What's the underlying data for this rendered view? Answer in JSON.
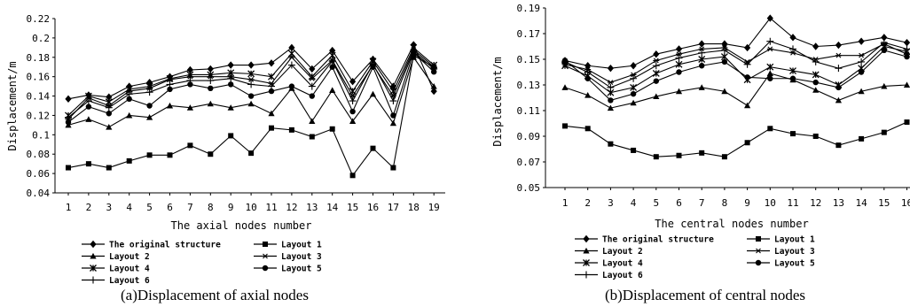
{
  "panels": [
    {
      "caption": "(a)Displacement of axial nodes"
    },
    {
      "caption": "(b)Displacement of central nodes"
    }
  ],
  "chart_data": [
    {
      "type": "line",
      "xlabel": "The axial nodes number",
      "ylabel": "Displacement/m",
      "ylim": [
        0.04,
        0.22
      ],
      "yticks": [
        "0.04",
        "0.06",
        "0.08",
        "0.1",
        "0.12",
        "0.14",
        "0.16",
        "0.18",
        "0.2",
        "0.22"
      ],
      "yticks_values": [
        0.04,
        0.06,
        0.08,
        0.1,
        0.12,
        0.14,
        0.16,
        0.18,
        0.2,
        0.22
      ],
      "x": [
        1,
        2,
        3,
        4,
        5,
        6,
        7,
        8,
        9,
        10,
        11,
        12,
        13,
        14,
        15,
        16,
        17,
        18,
        19
      ],
      "legend_position": "bottom",
      "series": [
        {
          "name": "The original structure",
          "marker": "diamond",
          "values": [
            0.137,
            0.141,
            0.139,
            0.15,
            0.154,
            0.16,
            0.167,
            0.168,
            0.172,
            0.172,
            0.174,
            0.19,
            0.168,
            0.187,
            0.155,
            0.178,
            0.15,
            0.193,
            0.145
          ]
        },
        {
          "name": "Layout 1",
          "marker": "square",
          "values": [
            0.066,
            0.07,
            0.066,
            0.073,
            0.079,
            0.079,
            0.089,
            0.08,
            0.099,
            0.081,
            0.107,
            0.105,
            0.098,
            0.106,
            0.058,
            0.086,
            0.066,
            0.182,
            0.17
          ]
        },
        {
          "name": "Layout 2",
          "marker": "triangle",
          "values": [
            0.11,
            0.116,
            0.108,
            0.12,
            0.118,
            0.13,
            0.128,
            0.132,
            0.128,
            0.132,
            0.122,
            0.148,
            0.114,
            0.146,
            0.114,
            0.142,
            0.112,
            0.18,
            0.15
          ]
        },
        {
          "name": "Layout 3",
          "marker": "star",
          "values": [
            0.116,
            0.138,
            0.13,
            0.145,
            0.148,
            0.157,
            0.16,
            0.16,
            0.16,
            0.157,
            0.153,
            0.18,
            0.158,
            0.177,
            0.14,
            0.172,
            0.14,
            0.188,
            0.17
          ]
        },
        {
          "name": "Layout 4",
          "marker": "x",
          "values": [
            0.12,
            0.14,
            0.134,
            0.147,
            0.15,
            0.158,
            0.162,
            0.162,
            0.164,
            0.163,
            0.16,
            0.184,
            0.16,
            0.182,
            0.145,
            0.176,
            0.145,
            0.19,
            0.172
          ]
        },
        {
          "name": "Layout 5",
          "marker": "circle",
          "values": [
            0.113,
            0.129,
            0.122,
            0.137,
            0.13,
            0.147,
            0.152,
            0.148,
            0.152,
            0.14,
            0.145,
            0.15,
            0.14,
            0.17,
            0.124,
            0.17,
            0.12,
            0.185,
            0.165
          ]
        },
        {
          "name": "Layout 6",
          "marker": "plus",
          "values": [
            0.118,
            0.135,
            0.128,
            0.142,
            0.144,
            0.152,
            0.156,
            0.156,
            0.158,
            0.152,
            0.15,
            0.172,
            0.15,
            0.176,
            0.135,
            0.173,
            0.135,
            0.186,
            0.168
          ]
        }
      ]
    },
    {
      "type": "line",
      "xlabel": "The central nodes number",
      "ylabel": "Displacement/m",
      "ylim": [
        0.05,
        0.19
      ],
      "yticks": [
        "0.05",
        "0.07",
        "0.09",
        "0.11",
        "0.13",
        "0.15",
        "0.17",
        "0.19"
      ],
      "yticks_values": [
        0.05,
        0.07,
        0.09,
        0.11,
        0.13,
        0.15,
        0.17,
        0.19
      ],
      "x": [
        1,
        2,
        3,
        4,
        5,
        6,
        7,
        8,
        9,
        10,
        11,
        12,
        13,
        14,
        15,
        16
      ],
      "xticks": [
        "1",
        "2",
        "3",
        "4",
        "5",
        "6",
        "7",
        "8",
        "9",
        "10",
        "11",
        "12",
        "13",
        "14",
        "15",
        "16"
      ],
      "legend_position": "bottom",
      "series": [
        {
          "name": "The original structure",
          "marker": "diamond",
          "values": [
            0.149,
            0.145,
            0.143,
            0.145,
            0.154,
            0.158,
            0.162,
            0.162,
            0.159,
            0.182,
            0.167,
            0.16,
            0.161,
            0.164,
            0.167,
            0.163
          ]
        },
        {
          "name": "Layout 1",
          "marker": "square",
          "values": [
            0.098,
            0.096,
            0.084,
            0.079,
            0.074,
            0.075,
            0.077,
            0.074,
            0.085,
            0.096,
            0.092,
            0.09,
            0.083,
            0.088,
            0.093,
            0.101
          ]
        },
        {
          "name": "Layout 2",
          "marker": "triangle",
          "values": [
            0.128,
            0.122,
            0.112,
            0.116,
            0.121,
            0.125,
            0.128,
            0.125,
            0.114,
            0.139,
            0.134,
            0.126,
            0.118,
            0.125,
            0.129,
            0.13
          ]
        },
        {
          "name": "Layout 3",
          "marker": "star",
          "values": [
            0.146,
            0.142,
            0.132,
            0.138,
            0.149,
            0.154,
            0.158,
            0.159,
            0.148,
            0.158,
            0.155,
            0.15,
            0.153,
            0.153,
            0.162,
            0.154
          ]
        },
        {
          "name": "Layout 4",
          "marker": "x",
          "values": [
            0.145,
            0.137,
            0.124,
            0.128,
            0.139,
            0.146,
            0.15,
            0.152,
            0.134,
            0.144,
            0.141,
            0.138,
            0.13,
            0.143,
            0.16,
            0.156
          ]
        },
        {
          "name": "Layout 5",
          "marker": "circle",
          "values": [
            0.149,
            0.135,
            0.118,
            0.123,
            0.133,
            0.14,
            0.145,
            0.148,
            0.136,
            0.135,
            0.135,
            0.132,
            0.128,
            0.14,
            0.157,
            0.152
          ]
        },
        {
          "name": "Layout 6",
          "marker": "plus",
          "values": [
            0.148,
            0.14,
            0.128,
            0.135,
            0.145,
            0.151,
            0.155,
            0.157,
            0.146,
            0.164,
            0.158,
            0.148,
            0.143,
            0.148,
            0.163,
            0.158
          ]
        }
      ]
    }
  ]
}
